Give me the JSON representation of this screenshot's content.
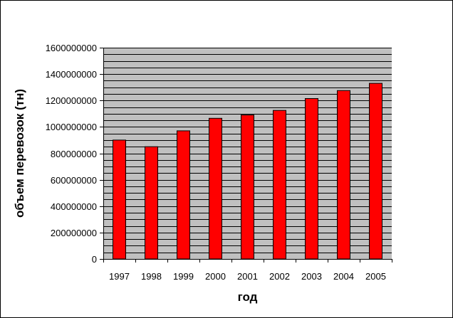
{
  "chart_data": {
    "type": "bar",
    "title": "",
    "xlabel": "год",
    "ylabel": "объем перевозок (тн)",
    "categories": [
      "1997",
      "1998",
      "1999",
      "2000",
      "2001",
      "2002",
      "2003",
      "2004",
      "2005"
    ],
    "values": [
      900000000,
      850000000,
      970000000,
      1065000000,
      1090000000,
      1125000000,
      1215000000,
      1275000000,
      1330000000
    ],
    "ylim": [
      0,
      1600000000
    ],
    "yticks": [
      0,
      200000000,
      400000000,
      600000000,
      800000000,
      1000000000,
      1200000000,
      1400000000,
      1600000000
    ],
    "ytick_labels": [
      "0",
      "200000000",
      "400000000",
      "600000000",
      "800000000",
      "1000000000",
      "1200000000",
      "1400000000",
      "1600000000"
    ],
    "grid": true,
    "legend": "none",
    "colors": {
      "bar": "#ff0000",
      "plot_background": "#c0c0c0",
      "gridline": "#000000"
    }
  }
}
